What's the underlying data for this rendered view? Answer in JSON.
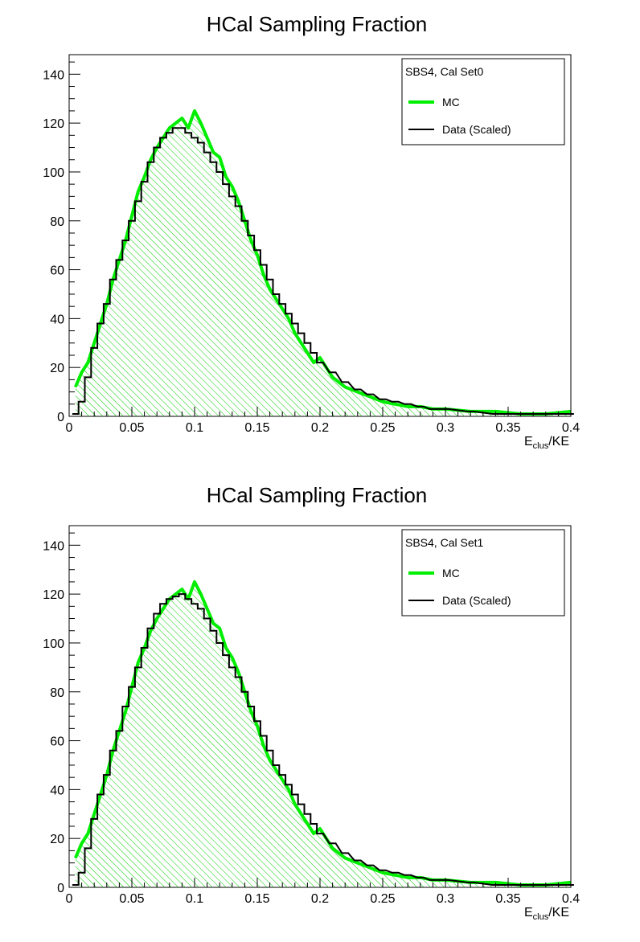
{
  "chart_data": [
    {
      "type": "histogram",
      "title": "HCal Sampling Fraction",
      "xlabel_main": "E",
      "xlabel_sub": "clus",
      "xlabel_tail": "/KE",
      "xlim": [
        0,
        0.4
      ],
      "ylim": [
        0,
        148
      ],
      "xticks": [
        "0",
        "0.05",
        "0.1",
        "0.15",
        "0.2",
        "0.25",
        "0.3",
        "0.35",
        "0.4"
      ],
      "yticks": [
        "0",
        "20",
        "40",
        "60",
        "80",
        "100",
        "120",
        "140"
      ],
      "legend": {
        "header": "SBS4, Cal Set0",
        "placement": "top-right",
        "entries": [
          {
            "label": "MC",
            "color": "#00ee00"
          },
          {
            "label": "Data (Scaled)",
            "color": "#000000"
          }
        ]
      },
      "series": [
        {
          "name": "MC",
          "color": "#00ee00",
          "style": "thick line with hatched fill",
          "x": [
            0.005,
            0.01,
            0.015,
            0.02,
            0.025,
            0.03,
            0.035,
            0.04,
            0.045,
            0.05,
            0.055,
            0.06,
            0.065,
            0.07,
            0.075,
            0.08,
            0.085,
            0.09,
            0.095,
            0.1,
            0.105,
            0.11,
            0.115,
            0.12,
            0.125,
            0.13,
            0.135,
            0.14,
            0.145,
            0.15,
            0.155,
            0.16,
            0.165,
            0.17,
            0.175,
            0.18,
            0.185,
            0.19,
            0.195,
            0.2,
            0.21,
            0.22,
            0.23,
            0.24,
            0.25,
            0.26,
            0.27,
            0.28,
            0.29,
            0.3,
            0.32,
            0.34,
            0.36,
            0.38,
            0.4
          ],
          "values": [
            12,
            18,
            22,
            30,
            38,
            46,
            56,
            64,
            72,
            82,
            92,
            98,
            105,
            110,
            114,
            118,
            120,
            122,
            118,
            125,
            120,
            114,
            108,
            106,
            98,
            94,
            88,
            80,
            72,
            66,
            58,
            52,
            48,
            44,
            40,
            34,
            30,
            26,
            22,
            24,
            16,
            12,
            10,
            8,
            6,
            5,
            4,
            4,
            3,
            3,
            2,
            2,
            1,
            1,
            2
          ]
        },
        {
          "name": "Data (Scaled)",
          "color": "#000000",
          "style": "step line",
          "x": [
            0.005,
            0.01,
            0.015,
            0.02,
            0.025,
            0.03,
            0.035,
            0.04,
            0.045,
            0.05,
            0.055,
            0.06,
            0.065,
            0.07,
            0.075,
            0.08,
            0.085,
            0.09,
            0.095,
            0.1,
            0.105,
            0.11,
            0.115,
            0.12,
            0.125,
            0.13,
            0.135,
            0.14,
            0.145,
            0.15,
            0.155,
            0.16,
            0.165,
            0.17,
            0.175,
            0.18,
            0.185,
            0.19,
            0.195,
            0.2,
            0.21,
            0.22,
            0.23,
            0.24,
            0.25,
            0.26,
            0.27,
            0.28,
            0.29,
            0.3,
            0.32,
            0.34,
            0.36,
            0.38,
            0.4
          ],
          "values": [
            1,
            6,
            16,
            28,
            38,
            46,
            56,
            64,
            72,
            80,
            88,
            96,
            104,
            110,
            114,
            116,
            118,
            118,
            116,
            114,
            112,
            108,
            104,
            100,
            95,
            90,
            86,
            80,
            74,
            68,
            62,
            56,
            50,
            46,
            42,
            38,
            34,
            30,
            26,
            22,
            18,
            14,
            11,
            9,
            7,
            6,
            5,
            4,
            3,
            3,
            2,
            1,
            1,
            1,
            1
          ]
        }
      ]
    },
    {
      "type": "histogram",
      "title": "HCal Sampling Fraction",
      "xlabel_main": "E",
      "xlabel_sub": "clus",
      "xlabel_tail": "/KE",
      "xlim": [
        0,
        0.4
      ],
      "ylim": [
        0,
        148
      ],
      "xticks": [
        "0",
        "0.05",
        "0.1",
        "0.15",
        "0.2",
        "0.25",
        "0.3",
        "0.35",
        "0.4"
      ],
      "yticks": [
        "0",
        "20",
        "40",
        "60",
        "80",
        "100",
        "120",
        "140"
      ],
      "legend": {
        "header": "SBS4, Cal Set1",
        "placement": "top-right",
        "entries": [
          {
            "label": "MC",
            "color": "#00ee00"
          },
          {
            "label": "Data (Scaled)",
            "color": "#000000"
          }
        ]
      },
      "series": [
        {
          "name": "MC",
          "color": "#00ee00",
          "style": "thick line with hatched fill",
          "x": [
            0.005,
            0.01,
            0.015,
            0.02,
            0.025,
            0.03,
            0.035,
            0.04,
            0.045,
            0.05,
            0.055,
            0.06,
            0.065,
            0.07,
            0.075,
            0.08,
            0.085,
            0.09,
            0.095,
            0.1,
            0.105,
            0.11,
            0.115,
            0.12,
            0.125,
            0.13,
            0.135,
            0.14,
            0.145,
            0.15,
            0.155,
            0.16,
            0.165,
            0.17,
            0.175,
            0.18,
            0.185,
            0.19,
            0.195,
            0.2,
            0.21,
            0.22,
            0.23,
            0.24,
            0.25,
            0.26,
            0.27,
            0.28,
            0.29,
            0.3,
            0.32,
            0.34,
            0.36,
            0.38,
            0.4
          ],
          "values": [
            12,
            18,
            22,
            30,
            38,
            46,
            56,
            64,
            72,
            82,
            92,
            98,
            105,
            110,
            114,
            118,
            120,
            122,
            118,
            125,
            120,
            114,
            108,
            106,
            98,
            94,
            88,
            80,
            72,
            66,
            58,
            52,
            48,
            44,
            40,
            34,
            30,
            26,
            22,
            24,
            16,
            12,
            10,
            8,
            6,
            5,
            4,
            4,
            3,
            3,
            2,
            2,
            1,
            1,
            2
          ]
        },
        {
          "name": "Data (Scaled)",
          "color": "#000000",
          "style": "step line",
          "x": [
            0.005,
            0.01,
            0.015,
            0.02,
            0.025,
            0.03,
            0.035,
            0.04,
            0.045,
            0.05,
            0.055,
            0.06,
            0.065,
            0.07,
            0.075,
            0.08,
            0.085,
            0.09,
            0.095,
            0.1,
            0.105,
            0.11,
            0.115,
            0.12,
            0.125,
            0.13,
            0.135,
            0.14,
            0.145,
            0.15,
            0.155,
            0.16,
            0.165,
            0.17,
            0.175,
            0.18,
            0.185,
            0.19,
            0.195,
            0.2,
            0.21,
            0.22,
            0.23,
            0.24,
            0.25,
            0.26,
            0.27,
            0.28,
            0.29,
            0.3,
            0.32,
            0.34,
            0.36,
            0.38,
            0.4
          ],
          "values": [
            1,
            6,
            16,
            28,
            38,
            46,
            56,
            64,
            74,
            82,
            90,
            98,
            106,
            112,
            116,
            118,
            119,
            120,
            118,
            116,
            114,
            110,
            105,
            100,
            95,
            90,
            86,
            80,
            74,
            68,
            62,
            56,
            50,
            46,
            42,
            38,
            34,
            30,
            26,
            22,
            18,
            14,
            11,
            9,
            7,
            6,
            5,
            4,
            3,
            3,
            2,
            1,
            1,
            1,
            1
          ]
        }
      ]
    }
  ]
}
